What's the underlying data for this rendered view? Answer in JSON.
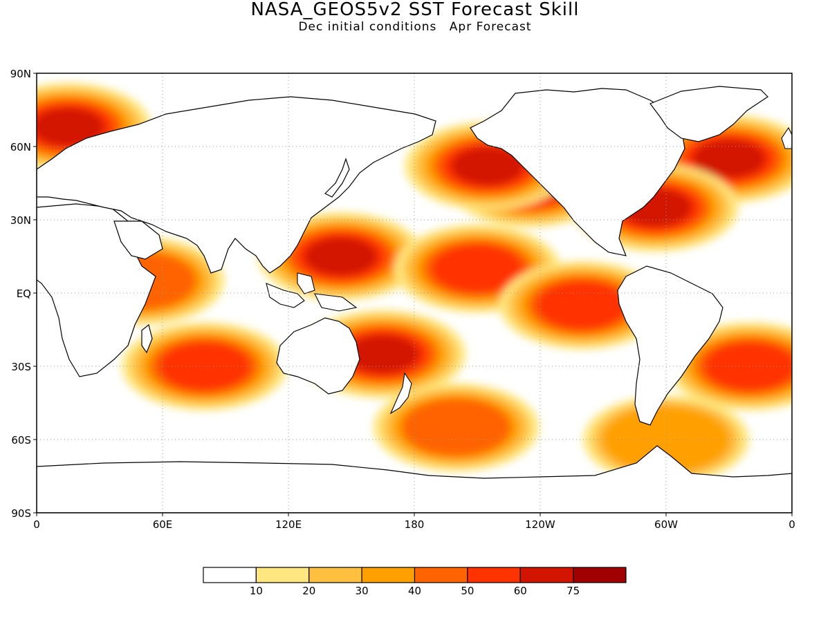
{
  "title": "NASA_GEOS5v2 SST Forecast Skill",
  "subtitle": {
    "initial": "Dec initial conditions",
    "forecast": "Apr Forecast"
  },
  "map": {
    "projection": "equirectangular",
    "lon_range": [
      0,
      360
    ],
    "lat_range": [
      -90,
      90
    ],
    "grid": "dotted",
    "lat_labels": [
      "90N",
      "60N",
      "30N",
      "EQ",
      "30S",
      "60S",
      "90S"
    ],
    "lat_values": [
      90,
      60,
      30,
      0,
      -30,
      -60,
      -90
    ],
    "lon_labels": [
      "0",
      "60E",
      "120E",
      "180",
      "120W",
      "60W",
      "0"
    ],
    "lon_values": [
      0,
      60,
      120,
      180,
      240,
      300,
      360
    ],
    "field": "SST forecast skill (%)",
    "skill_regions": [
      {
        "lon": 235,
        "lat": 45,
        "level": 75
      },
      {
        "lon": 215,
        "lat": 52,
        "level": 60
      },
      {
        "lon": 330,
        "lat": 55,
        "level": 60
      },
      {
        "lon": 295,
        "lat": 35,
        "level": 60
      },
      {
        "lon": 145,
        "lat": 15,
        "level": 60
      },
      {
        "lon": 165,
        "lat": -25,
        "level": 60
      },
      {
        "lon": 210,
        "lat": 10,
        "level": 50
      },
      {
        "lon": 260,
        "lat": -5,
        "level": 50
      },
      {
        "lon": 80,
        "lat": -30,
        "level": 50
      },
      {
        "lon": 200,
        "lat": -55,
        "level": 40
      },
      {
        "lon": 15,
        "lat": 68,
        "level": 60
      },
      {
        "lon": 340,
        "lat": -30,
        "level": 50
      },
      {
        "lon": 50,
        "lat": 5,
        "level": 40
      },
      {
        "lon": 300,
        "lat": -60,
        "level": 30
      }
    ]
  },
  "colorbar": {
    "colors": [
      "#ffffff",
      "#ffe680",
      "#ffc040",
      "#ffa000",
      "#ff6400",
      "#ff3200",
      "#d21400",
      "#a00000"
    ],
    "tick_labels": [
      "10",
      "20",
      "30",
      "40",
      "50",
      "60",
      "75"
    ],
    "tick_values": [
      10,
      20,
      30,
      40,
      50,
      60,
      75
    ]
  }
}
